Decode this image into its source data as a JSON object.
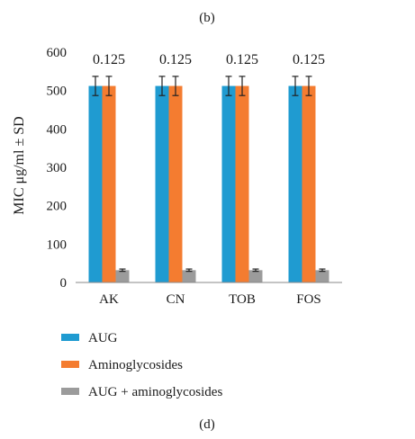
{
  "panel_label_top": "(b)",
  "panel_label_bottom": "(d)",
  "chart_data": {
    "type": "bar",
    "title": "",
    "xlabel": "",
    "ylabel": "MIC μg/ml ± SD",
    "ylim": [
      0,
      600
    ],
    "yticks": [
      0,
      100,
      200,
      300,
      400,
      500,
      600
    ],
    "grid": false,
    "legend_position": "bottom-left",
    "categories": [
      "AK",
      "CN",
      "TOB",
      "FOS"
    ],
    "series": [
      {
        "name": "AUG",
        "color": "#1f9bd1",
        "values": [
          512,
          512,
          512,
          512
        ],
        "errors": [
          25,
          25,
          25,
          25
        ]
      },
      {
        "name": "Aminoglycosides",
        "color": "#f47c30",
        "values": [
          512,
          512,
          512,
          512
        ],
        "errors": [
          25,
          25,
          25,
          25
        ]
      },
      {
        "name": "AUG + aminoglycosides",
        "color": "#9b9b9b",
        "values": [
          32,
          32,
          32,
          32
        ],
        "errors": [
          3,
          3,
          3,
          3
        ]
      }
    ],
    "annotations": [
      "0.125",
      "0.125",
      "0.125",
      "0.125"
    ]
  }
}
